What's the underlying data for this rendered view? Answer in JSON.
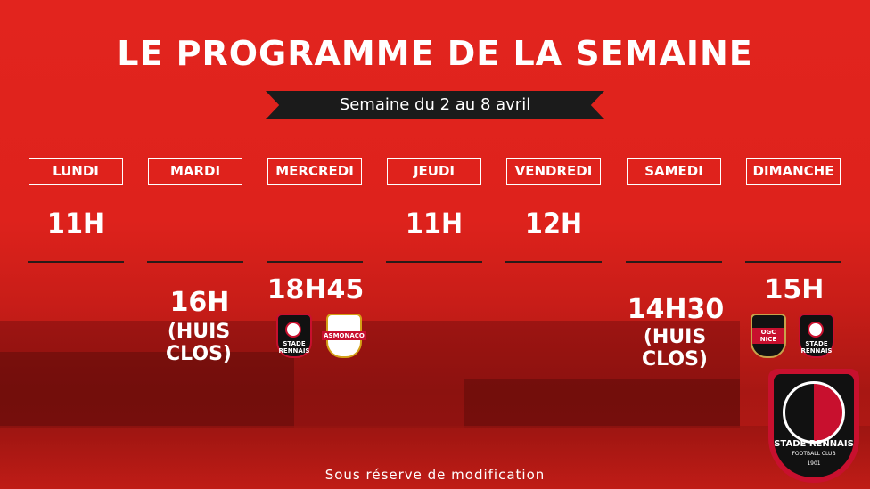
{
  "header": {
    "title": "LE PROGRAMME DE LA SEMAINE",
    "week": "Semaine du 2 au 8 avril"
  },
  "days": [
    {
      "label": "LUNDI",
      "am": "11H",
      "pm": ""
    },
    {
      "label": "MARDI",
      "am": "",
      "pm": "16H",
      "pm_note": "(HUIS CLOS)"
    },
    {
      "label": "MERCREDI",
      "am": "",
      "pm": "18H45",
      "match": [
        "STADE RENNAIS",
        "AS MONACO"
      ]
    },
    {
      "label": "JEUDI",
      "am": "11H",
      "pm": ""
    },
    {
      "label": "VENDREDI",
      "am": "12H",
      "pm": ""
    },
    {
      "label": "SAMEDI",
      "am": "",
      "pm": "14H30",
      "pm_note": "(HUIS CLOS)"
    },
    {
      "label": "DIMANCHE",
      "am": "",
      "pm": "15H",
      "match": [
        "OGC NICE",
        "STADE RENNAIS"
      ]
    }
  ],
  "logos": {
    "rennes_short": "STADE RENNAIS",
    "monaco_short": "ASMONACO",
    "nice_short": "OGC NICE",
    "club_name": "STADE RENNAIS",
    "club_sub": "FOOTBALL CLUB",
    "club_year": "1901"
  },
  "footer": "Sous réserve de modification",
  "colors": {
    "background": "#d8211c",
    "banner": "#1b1b1b",
    "club_red": "#c8102e"
  }
}
